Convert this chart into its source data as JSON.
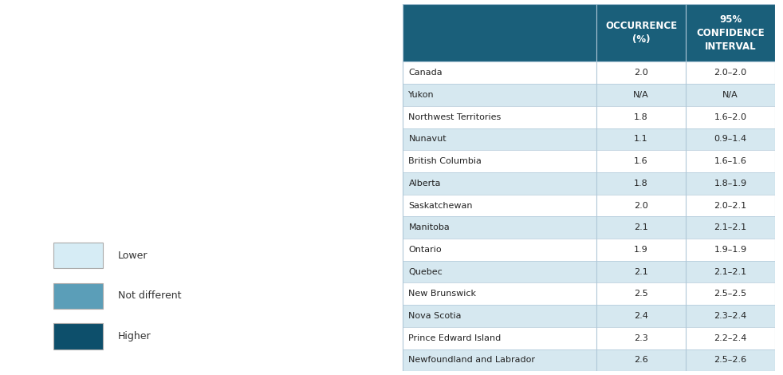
{
  "table_header_bg": "#1a5f7a",
  "table_header_color": "#ffffff",
  "row_alt_bg": "#d6e8f0",
  "row_bg": "#ffffff",
  "border_color": "#b0c8d8",
  "header_col1": "OCCURRENCE\n(%)",
  "header_col2": "95%\nCONFIDENCE\nINTERVAL",
  "rows": [
    [
      "Canada",
      "2.0",
      "2.0–2.0"
    ],
    [
      "Yukon",
      "N/A",
      "N/A"
    ],
    [
      "Northwest Territories",
      "1.8",
      "1.6–2.0"
    ],
    [
      "Nunavut",
      "1.1",
      "0.9–1.4"
    ],
    [
      "British Columbia",
      "1.6",
      "1.6–1.6"
    ],
    [
      "Alberta",
      "1.8",
      "1.8–1.9"
    ],
    [
      "Saskatchewan",
      "2.0",
      "2.0–2.1"
    ],
    [
      "Manitoba",
      "2.1",
      "2.1–2.1"
    ],
    [
      "Ontario",
      "1.9",
      "1.9–1.9"
    ],
    [
      "Quebec",
      "2.1",
      "2.1–2.1"
    ],
    [
      "New Brunswick",
      "2.5",
      "2.5–2.5"
    ],
    [
      "Nova Scotia",
      "2.4",
      "2.3–2.4"
    ],
    [
      "Prince Edward Island",
      "2.3",
      "2.2–2.4"
    ],
    [
      "Newfoundland and Labrador",
      "2.6",
      "2.5–2.6"
    ]
  ],
  "legend_items": [
    {
      "label": "Lower",
      "color": "#d6ecf5"
    },
    {
      "label": "Not different",
      "color": "#5b9eb8"
    },
    {
      "label": "Higher",
      "color": "#0d4f6b"
    }
  ],
  "fig_bg": "#ffffff"
}
